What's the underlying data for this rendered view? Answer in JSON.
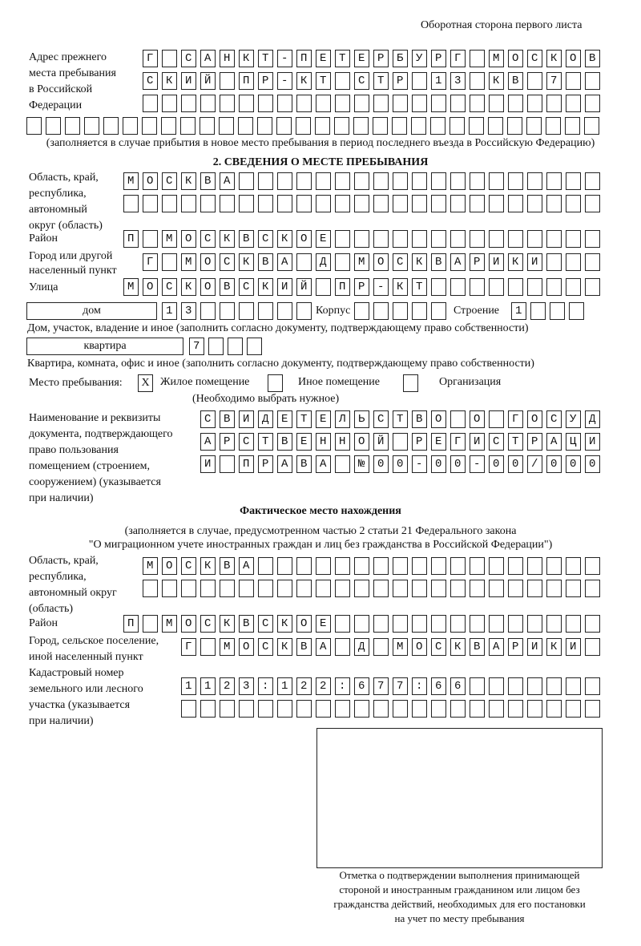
{
  "header": "Оборотная сторона первого листа",
  "prev": {
    "label": [
      "Адрес прежнего",
      "места пребывания",
      "в Российской",
      "Федерации"
    ],
    "rows": [
      "Г САНКТ-ПЕТЕРБУРГ МОСКОВ",
      "СКИЙ ПР-КТ СТР 13 КВ 7  ",
      "                        ",
      "                              "
    ],
    "note": "(заполняется в случае прибытия в новое место пребывания в период последнего въезда в Российскую Федерацию)"
  },
  "section2": {
    "title": "2. СВЕДЕНИЯ О МЕСТЕ ПРЕБЫВАНИЯ",
    "region_label": [
      "Область, край,",
      "республика,",
      "автономный",
      "округ (область)"
    ],
    "region_rows": [
      "МОСКВА                   ",
      "                         "
    ],
    "district_label": "Район",
    "district": "П МОСКВСКОЕ              ",
    "city_label": [
      "Город или другой",
      "населенный пункт"
    ],
    "city": "Г МОСКВА Д МОСКВАРИКИ   ",
    "street_label": "Улица",
    "street": "МОСКОВСКИЙ ПР-КТ         ",
    "house_type": "дом",
    "house": "13      ",
    "korpus_label": "Корпус",
    "korpus": "     ",
    "stroenie_label": "Строение",
    "stroenie": "1   ",
    "house_note": "Дом, участок, владение и иное (заполнить согласно документу, подтверждающему право собственности)",
    "flat_type": "квартира",
    "flat": "7   ",
    "flat_note": "Квартира, комната, офис и иное (заполнить согласно документу, подтверждающему право собственности)",
    "place_label": "Место пребывания:",
    "options": [
      {
        "label": "Жилое помещение",
        "mark": "X"
      },
      {
        "label": "Иное помещение",
        "mark": ""
      },
      {
        "label": "Организация",
        "mark": ""
      }
    ],
    "choose_note": "(Необходимо выбрать нужное)",
    "doc_label": [
      "Наименование и реквизиты",
      "документа, подтверждающего",
      "право пользования",
      "помещением (строением,",
      "сооружением) (указывается",
      "при наличии)"
    ],
    "doc_rows": [
      "СВИДЕТЕЛЬСТВО О ГОСУД",
      "АРСТВЕННОЙ РЕГИСТРАЦИ",
      "И ПРАВА №00-00-00/000"
    ]
  },
  "actual": {
    "title": "Фактическое место нахождения",
    "note": [
      "(заполняется в случае, предусмотренном частью 2 статьи 21 Федерального закона",
      "\"О миграционном учете иностранных граждан и лиц без гражданства в Российской Федерации\")"
    ],
    "region_label": [
      "Область, край,",
      "республика,",
      "автономный округ",
      "(область)"
    ],
    "region_rows": [
      "МОСКВА                  ",
      "                        "
    ],
    "district_label": "Район",
    "district": "П МОСКВСКОЕ              ",
    "city_label": [
      "Город, сельское поселение,",
      "иной населенный пункт"
    ],
    "city": "Г МОСКВА Д МОСКВАРИКИ ",
    "cadastre_label": [
      "Кадастровый номер",
      "земельного или лесного",
      "участка (указывается",
      "при наличии)"
    ],
    "cadastre_rows": [
      "1123:122:677:66       ",
      "                      "
    ]
  },
  "stamp_caption": [
    "Отметка о подтверждении выполнения принимающей",
    "стороной и иностранным гражданином или лицом без",
    "гражданства действий, необходимых для его постановки",
    "на учет по месту пребывания"
  ]
}
